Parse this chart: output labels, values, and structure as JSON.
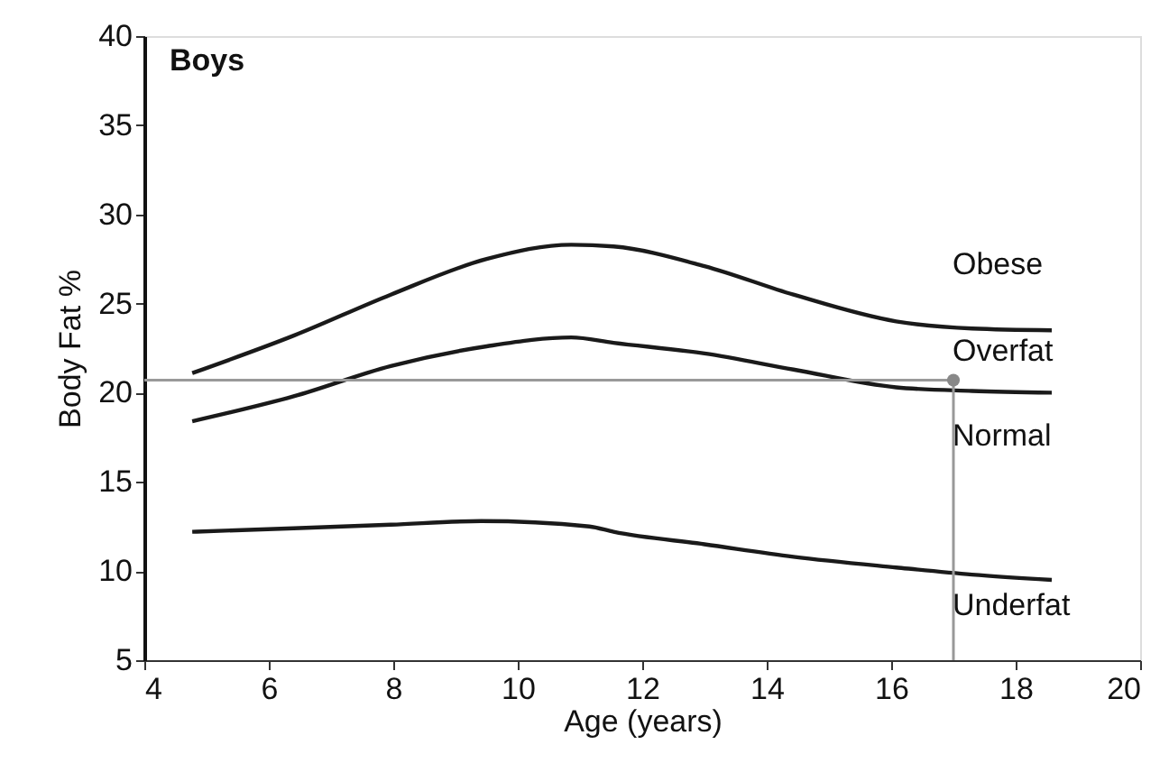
{
  "chart_data": {
    "type": "line",
    "title": "Boys",
    "xlabel": "Age (years)",
    "ylabel": "Body Fat %",
    "xlim": [
      4,
      20
    ],
    "xticks": [
      4,
      6,
      8,
      10,
      12,
      14,
      16,
      18,
      20
    ],
    "ylim": [
      5,
      40
    ],
    "yticks": [
      5,
      10,
      15,
      20,
      25,
      30,
      35,
      40
    ],
    "grid": false,
    "line_style": "solid",
    "series": [
      {
        "color": "#1a1a1a",
        "x": [
          4.77,
          6.4,
          7.96,
          9.5,
          10.86,
          11.54,
          13.0,
          14.43,
          16.08,
          17.3,
          18.58
        ],
        "values": [
          21.1,
          23.2,
          25.5,
          27.5,
          28.3,
          28.2,
          27.1,
          25.5,
          24.0,
          23.6,
          23.5
        ]
      },
      {
        "color": "#1a1a1a",
        "x": [
          4.77,
          6.4,
          7.96,
          9.5,
          10.86,
          11.54,
          13.0,
          14.43,
          16.08,
          17.3,
          18.58
        ],
        "values": [
          18.4,
          19.8,
          21.5,
          22.6,
          23.1,
          22.8,
          22.2,
          21.3,
          20.3,
          20.1,
          20.0
        ]
      },
      {
        "color": "#1a1a1a",
        "x": [
          4.77,
          6.4,
          7.96,
          9.41,
          11.15,
          11.54,
          13.0,
          14.43,
          16.08,
          17.3,
          18.58
        ],
        "values": [
          12.2,
          12.4,
          12.6,
          12.8,
          12.5,
          12.2,
          11.5,
          10.8,
          10.2,
          9.8,
          9.5
        ]
      },
      {
        "color": "#999999",
        "x": [
          4,
          17,
          17
        ],
        "values": [
          20.7,
          20.7,
          5
        ]
      },
      {
        "type": "scatter",
        "marker": "circle",
        "color": "#888888",
        "x": [
          17
        ],
        "values": [
          20.7
        ]
      }
    ],
    "annotations": [
      "Obese",
      "Overfat",
      "Normal",
      "Underfat"
    ]
  }
}
